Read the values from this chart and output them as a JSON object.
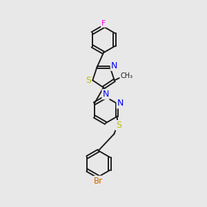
{
  "bg_color": "#e8e8e8",
  "bond_color": "#1a1a1a",
  "bond_width": 1.4,
  "atom_colors": {
    "F": "#ee00ee",
    "S": "#bbbb00",
    "N": "#0000ee",
    "Br": "#cc6600",
    "C": "#1a1a1a"
  },
  "font_size": 8.5
}
